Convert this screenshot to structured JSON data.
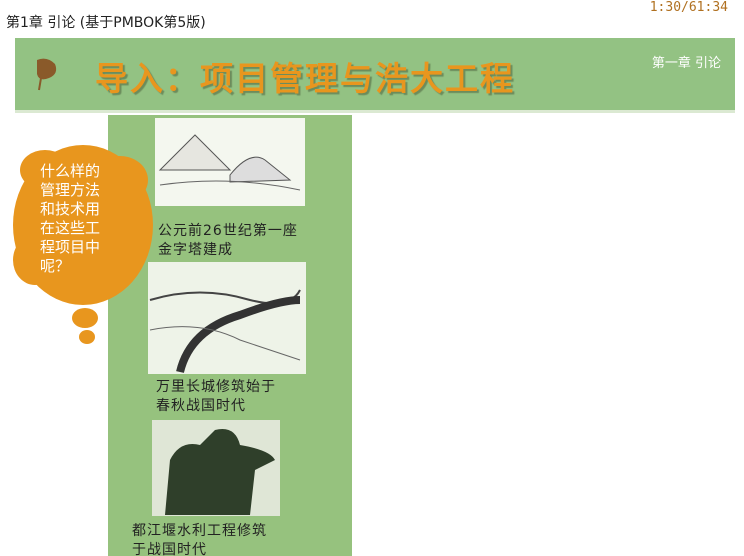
{
  "header": {
    "title": "第1章 引论 (基于PMBOK第5版)",
    "counter": "1:30/61:34"
  },
  "banner": {
    "title": "导入：项目管理与浩大工程",
    "chapter": "第一章 引论"
  },
  "bubble": {
    "lines": [
      "什么样的",
      "管理方法",
      "和技术用",
      "在这些工",
      "程项目中",
      "呢？"
    ]
  },
  "items": [
    {
      "lines": [
        "公元前26世纪第一座",
        "金字塔建成"
      ]
    },
    {
      "lines": [
        "万里长城修筑始于",
        "春秋战国时代"
      ]
    },
    {
      "lines": [
        "都江堰水利工程修筑",
        "于战国时代"
      ]
    }
  ]
}
